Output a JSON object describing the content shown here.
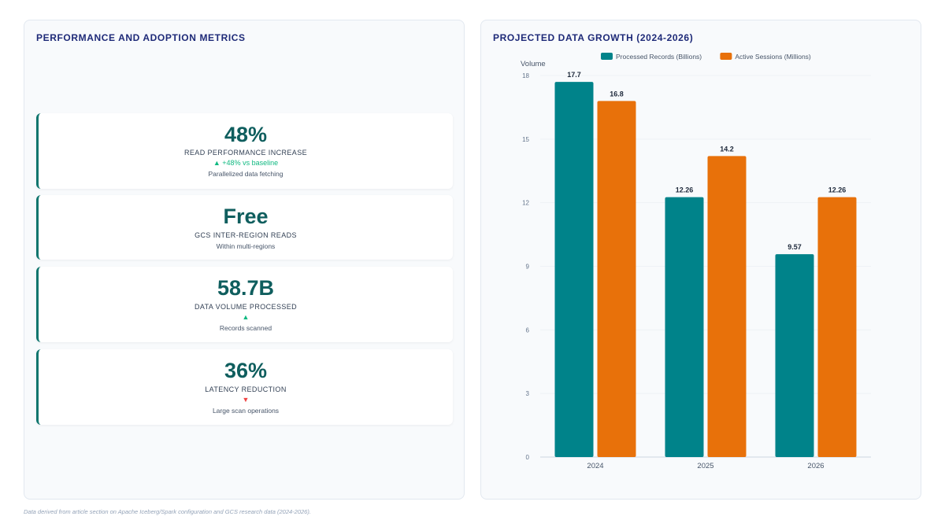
{
  "left_panel": {
    "title": "PERFORMANCE AND ADOPTION METRICS",
    "metrics": [
      {
        "value": "48%",
        "label": "READ PERFORMANCE INCREASE",
        "trend": "▲ +48% vs baseline",
        "trend_dir": "up",
        "sub": "Parallelized data fetching"
      },
      {
        "value": "Free",
        "label": "GCS INTER-REGION READS",
        "trend": "",
        "trend_dir": "",
        "sub": "Within multi-regions"
      },
      {
        "value": "58.7B",
        "label": "DATA VOLUME PROCESSED",
        "trend": "▲",
        "trend_dir": "up",
        "sub": "Records scanned"
      },
      {
        "value": "36%",
        "label": "LATENCY REDUCTION",
        "trend": "▼",
        "trend_dir": "down",
        "sub": "Large scan operations"
      }
    ]
  },
  "right_panel": {
    "title": "PROJECTED DATA GROWTH (2024-2026)"
  },
  "chart_data": {
    "type": "bar",
    "title": "PROJECTED DATA GROWTH (2024-2026)",
    "xlabel": "",
    "ylabel": "Volume",
    "categories": [
      "2024",
      "2025",
      "2026"
    ],
    "series": [
      {
        "name": "Processed Records (Billions)",
        "values": [
          17.7,
          12.26,
          9.57
        ],
        "color": "#00838a"
      },
      {
        "name": "Active Sessions (Millions)",
        "values": [
          16.8,
          14.2,
          12.26
        ],
        "color": "#e8710a"
      }
    ],
    "ylim": [
      0,
      18
    ],
    "yticks": [
      0,
      3,
      6,
      9,
      12,
      15,
      18
    ],
    "legend_position": "top",
    "grid": true
  },
  "footnote": "Data derived from article section on Apache Iceberg/Spark configuration and GCS research data (2024-2026)."
}
